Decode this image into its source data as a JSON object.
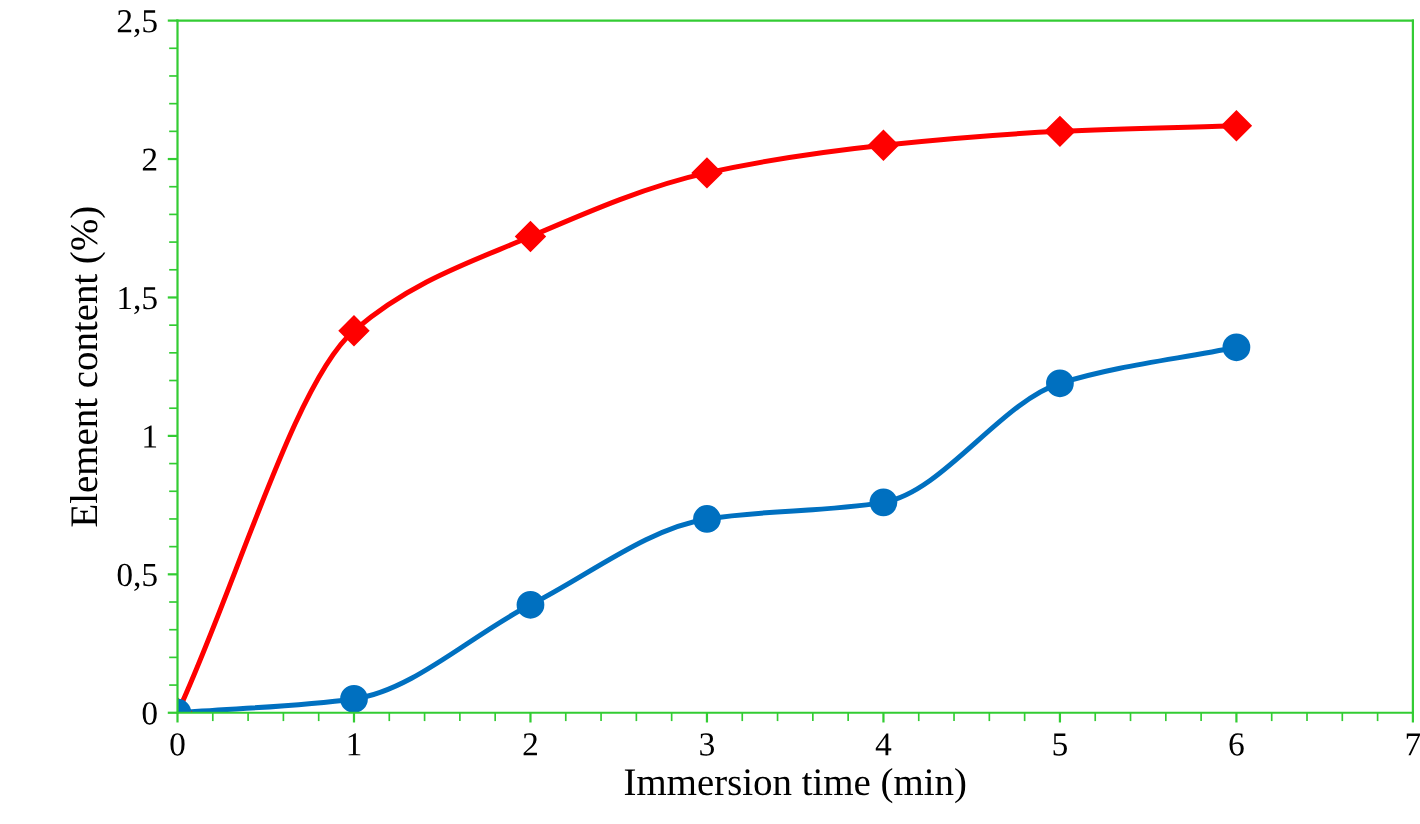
{
  "chart_data": {
    "type": "line",
    "xlabel": "Immersion time (min)",
    "ylabel": "Element content (%)",
    "x": [
      0,
      1,
      2,
      3,
      4,
      5,
      6
    ],
    "series": [
      {
        "color": "#ff0000",
        "marker": "diamond",
        "values": [
          0,
          1.38,
          1.72,
          1.95,
          2.05,
          2.1,
          2.12
        ]
      },
      {
        "color": "#0070c0",
        "marker": "circle",
        "values": [
          0,
          0.05,
          0.39,
          0.7,
          0.76,
          1.19,
          1.32
        ]
      }
    ],
    "line_style": "solid",
    "xlim": [
      0,
      7
    ],
    "xticks": [
      0,
      1,
      2,
      3,
      4,
      5,
      6,
      7
    ],
    "ylim": [
      0,
      2.5
    ],
    "yticks": [
      0,
      {
        "value": 0.5,
        "label": "0,5"
      },
      1,
      {
        "value": 1.5,
        "label": "1,5"
      },
      2,
      {
        "value": 2.5,
        "label": "2,5"
      }
    ],
    "grid": false,
    "legend": false
  }
}
